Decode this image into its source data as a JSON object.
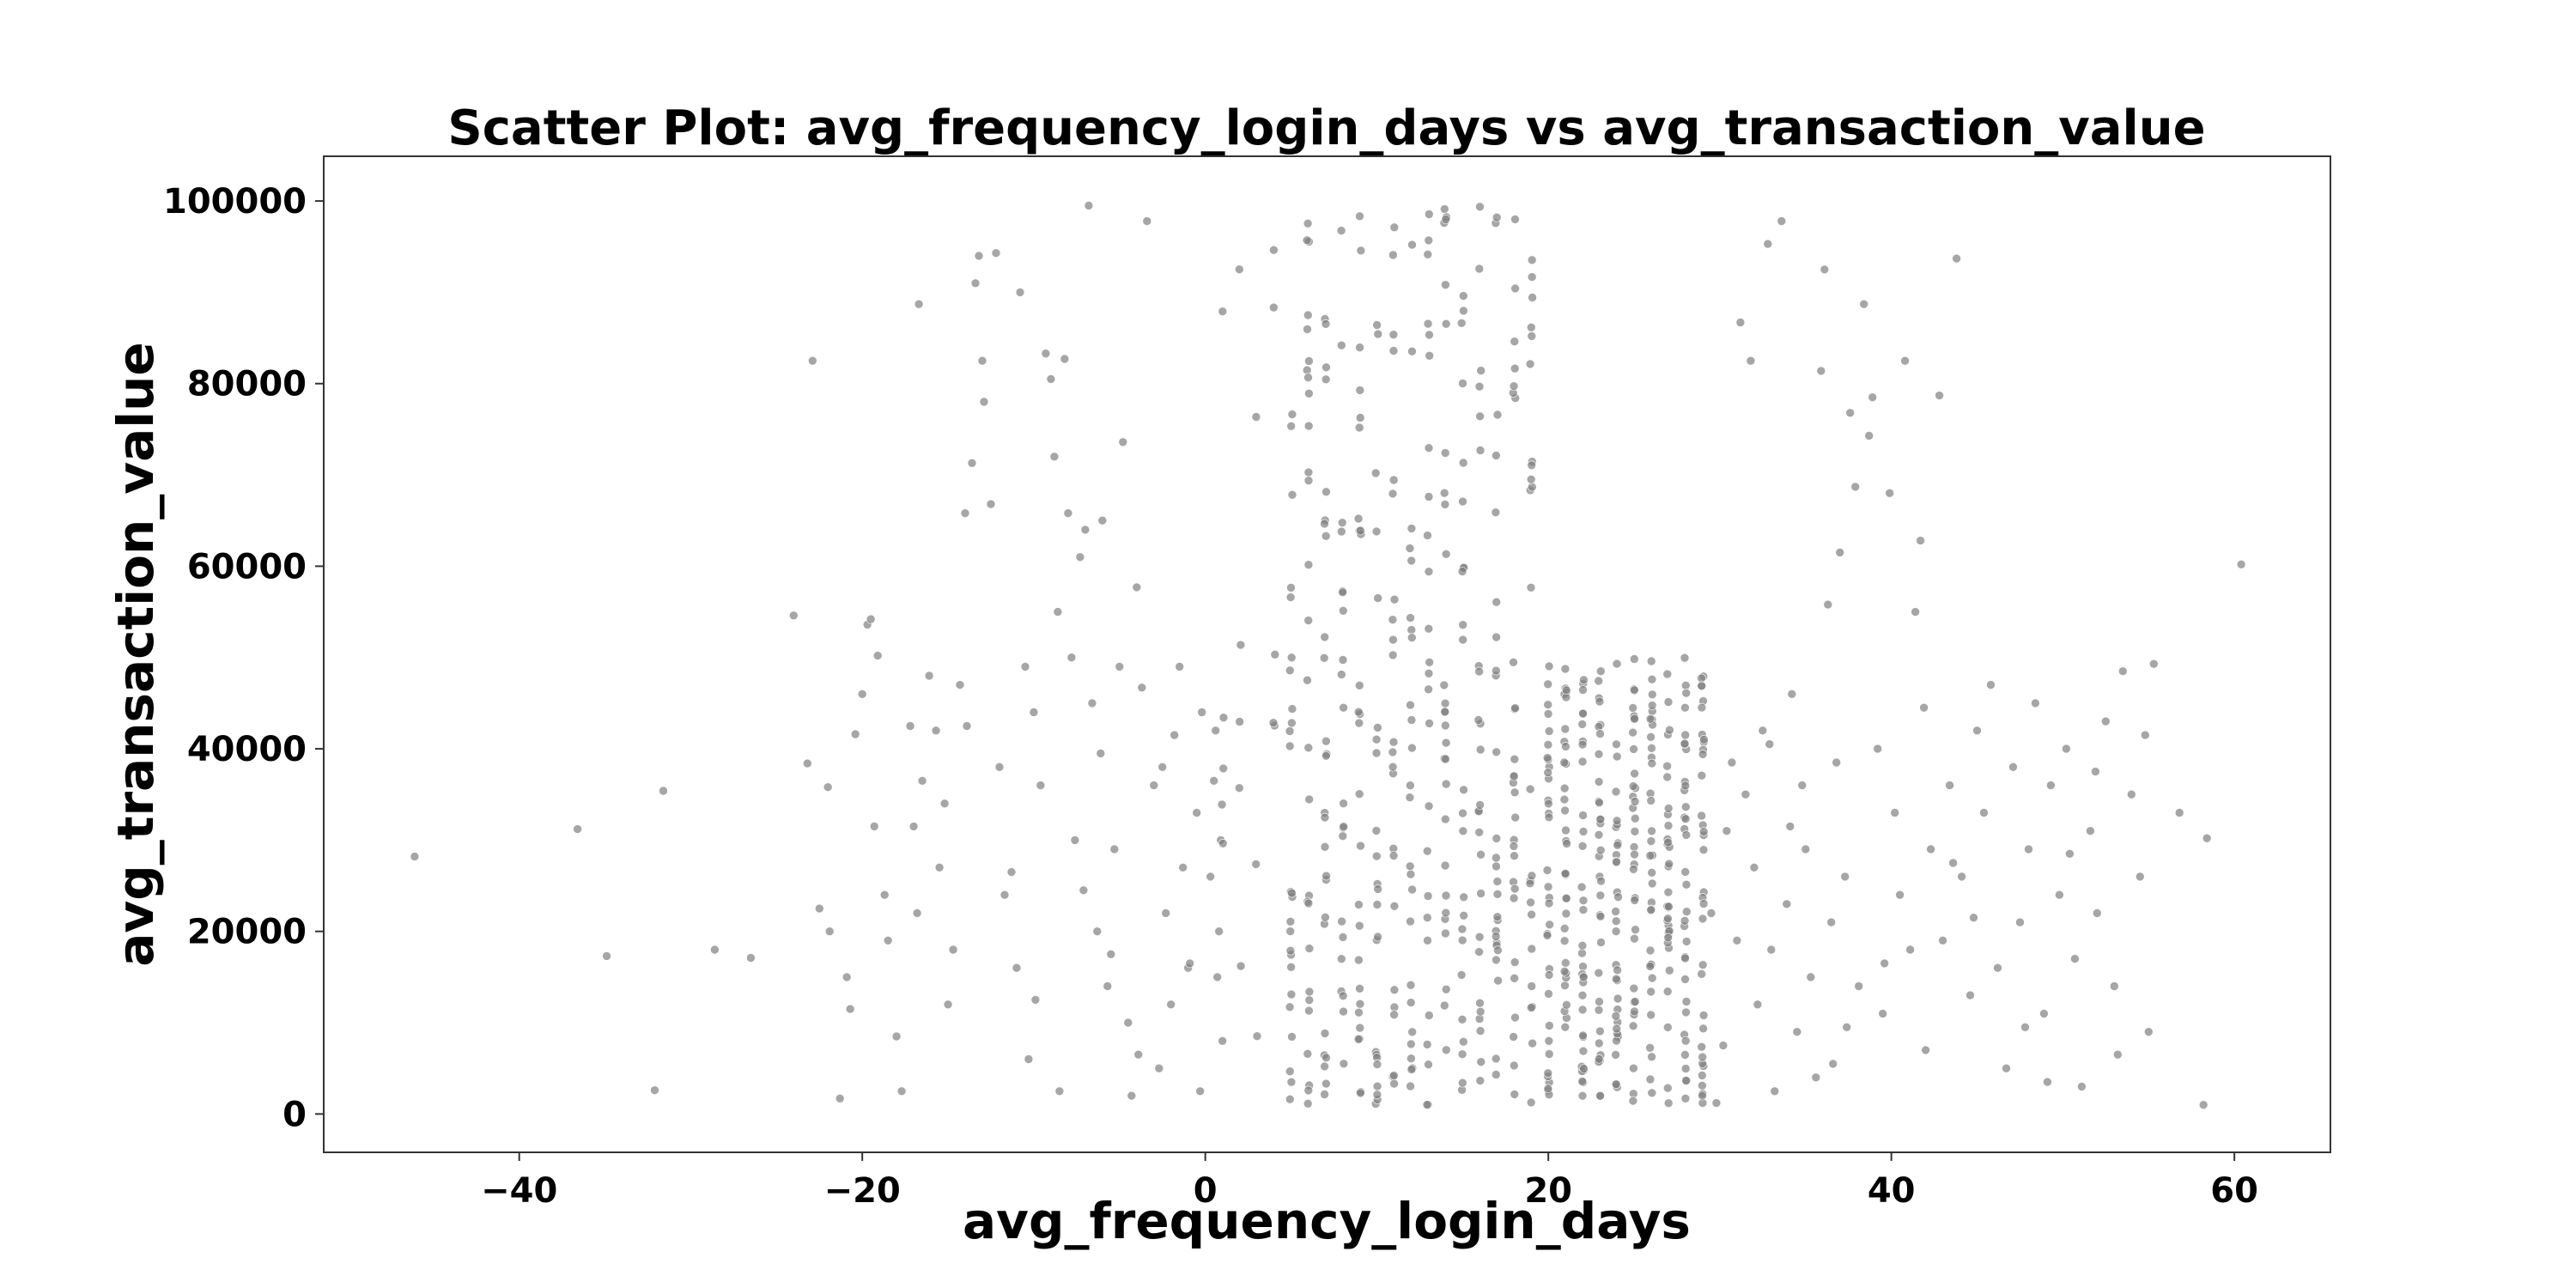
{
  "chart_data": {
    "type": "scatter",
    "title": "Scatter Plot: avg_frequency_login_days vs avg_transaction_value",
    "xlabel": "avg_frequency_login_days",
    "ylabel": "avg_transaction_value",
    "xlim": [
      -51.4,
      65.6
    ],
    "ylim": [
      -4200,
      104900
    ],
    "xticks": [
      -40,
      -20,
      0,
      20,
      40,
      60
    ],
    "xtick_labels": [
      "−40",
      "−20",
      "0",
      "20",
      "40",
      "60"
    ],
    "yticks": [
      0,
      20000,
      40000,
      60000,
      80000,
      100000
    ],
    "ytick_labels": [
      "0",
      "20000",
      "40000",
      "60000",
      "80000",
      "100000"
    ],
    "grid": false,
    "marker_color": "#808080",
    "marker_alpha": 0.7,
    "series": [
      {
        "name": "",
        "points": [
          [
            -46.1,
            28200
          ],
          [
            -36.6,
            31200
          ],
          [
            -34.9,
            17300
          ],
          [
            -32.1,
            2600
          ],
          [
            -31.6,
            35400
          ],
          [
            -28.6,
            18000
          ],
          [
            -26.5,
            17100
          ],
          [
            -24.0,
            54600
          ],
          [
            -23.2,
            38400
          ],
          [
            -22.9,
            82500
          ],
          [
            -22.5,
            22500
          ],
          [
            -22.0,
            35800
          ],
          [
            -21.9,
            20000
          ],
          [
            -21.3,
            1700
          ],
          [
            -20.9,
            15000
          ],
          [
            -20.7,
            11500
          ],
          [
            -20.4,
            41600
          ],
          [
            -20.0,
            46000
          ],
          [
            -19.7,
            53600
          ],
          [
            -19.5,
            54200
          ],
          [
            -19.1,
            50200
          ],
          [
            -18.7,
            24000
          ],
          [
            -18.5,
            19000
          ],
          [
            -17.7,
            2500
          ],
          [
            -17.2,
            42500
          ],
          [
            -17.0,
            31500
          ],
          [
            -16.7,
            88700
          ],
          [
            -16.5,
            36500
          ],
          [
            -16.1,
            48000
          ],
          [
            -15.7,
            42000
          ],
          [
            -15.5,
            27000
          ],
          [
            -15.0,
            12000
          ],
          [
            -14.7,
            18000
          ],
          [
            -14.3,
            47000
          ],
          [
            -14.0,
            65800
          ],
          [
            -13.6,
            71300
          ],
          [
            -13.4,
            91000
          ],
          [
            -13.2,
            94000
          ],
          [
            -13.0,
            82500
          ],
          [
            -12.9,
            78000
          ],
          [
            -12.5,
            66800
          ],
          [
            -12.2,
            94300
          ],
          [
            -12.0,
            38000
          ],
          [
            -11.7,
            24000
          ],
          [
            -11.0,
            16000
          ],
          [
            -10.8,
            90000
          ],
          [
            -10.5,
            49000
          ],
          [
            -10.3,
            6000
          ],
          [
            -10.0,
            44000
          ],
          [
            -9.6,
            36000
          ],
          [
            -9.3,
            83300
          ],
          [
            -9.0,
            80500
          ],
          [
            -8.8,
            72000
          ],
          [
            -8.6,
            55000
          ],
          [
            -8.5,
            2500
          ],
          [
            -8.2,
            82700
          ],
          [
            -8.0,
            65800
          ],
          [
            -7.8,
            50000
          ],
          [
            -7.6,
            30000
          ],
          [
            -7.3,
            61000
          ],
          [
            -7.0,
            64000
          ],
          [
            -6.8,
            99500
          ],
          [
            -6.6,
            45000
          ],
          [
            -6.3,
            20000
          ],
          [
            -6.0,
            65000
          ],
          [
            -5.7,
            14000
          ],
          [
            -5.3,
            29000
          ],
          [
            -5.0,
            49000
          ],
          [
            -4.8,
            73600
          ],
          [
            -4.5,
            10000
          ],
          [
            -4.3,
            2000
          ],
          [
            -4.0,
            57700
          ],
          [
            -3.7,
            46700
          ],
          [
            -3.4,
            97800
          ],
          [
            -3.0,
            36000
          ],
          [
            -2.7,
            5000
          ],
          [
            -2.5,
            38000
          ],
          [
            -2.3,
            22000
          ],
          [
            -2.0,
            12000
          ],
          [
            -1.5,
            49000
          ],
          [
            -1.3,
            27000
          ],
          [
            -1.0,
            16000
          ],
          [
            -0.5,
            33000
          ],
          [
            -0.3,
            2500
          ],
          [
            -0.2,
            44000
          ],
          [
            0.6,
            42000
          ],
          [
            0.7,
            15000
          ],
          [
            0.9,
            30000
          ],
          [
            1.0,
            8000
          ],
          [
            0.8,
            20000
          ],
          [
            29.5,
            22000
          ],
          [
            29.8,
            1200
          ],
          [
            30.2,
            7500
          ],
          [
            30.4,
            31000
          ],
          [
            30.7,
            38500
          ],
          [
            31.0,
            19000
          ],
          [
            31.2,
            86700
          ],
          [
            31.5,
            35000
          ],
          [
            31.8,
            82500
          ],
          [
            32.0,
            27000
          ],
          [
            32.2,
            12000
          ],
          [
            32.5,
            42000
          ],
          [
            32.8,
            95300
          ],
          [
            33.0,
            18000
          ],
          [
            33.2,
            2500
          ],
          [
            33.6,
            97800
          ],
          [
            33.9,
            23000
          ],
          [
            34.2,
            46000
          ],
          [
            34.5,
            9000
          ],
          [
            34.8,
            36000
          ],
          [
            35.0,
            29000
          ],
          [
            35.3,
            15000
          ],
          [
            35.6,
            4000
          ],
          [
            35.9,
            81400
          ],
          [
            36.1,
            92500
          ],
          [
            36.3,
            55800
          ],
          [
            36.5,
            21000
          ],
          [
            36.8,
            38500
          ],
          [
            37.0,
            61500
          ],
          [
            37.3,
            26000
          ],
          [
            37.6,
            76800
          ],
          [
            37.9,
            68700
          ],
          [
            38.1,
            14000
          ],
          [
            38.4,
            88700
          ],
          [
            38.7,
            74300
          ],
          [
            38.9,
            78500
          ],
          [
            39.2,
            40000
          ],
          [
            39.5,
            11000
          ],
          [
            39.9,
            68000
          ],
          [
            40.2,
            33000
          ],
          [
            40.5,
            24000
          ],
          [
            40.8,
            82500
          ],
          [
            41.1,
            18000
          ],
          [
            41.4,
            55000
          ],
          [
            41.7,
            62800
          ],
          [
            42.0,
            7000
          ],
          [
            42.3,
            29000
          ],
          [
            42.8,
            78700
          ],
          [
            43.0,
            19000
          ],
          [
            43.4,
            36000
          ],
          [
            43.8,
            93700
          ],
          [
            44.1,
            26000
          ],
          [
            44.6,
            13000
          ],
          [
            45.0,
            42000
          ],
          [
            45.4,
            33000
          ],
          [
            45.8,
            47000
          ],
          [
            46.2,
            16000
          ],
          [
            46.7,
            5000
          ],
          [
            47.1,
            38000
          ],
          [
            47.5,
            21000
          ],
          [
            48.0,
            29000
          ],
          [
            48.4,
            45000
          ],
          [
            48.9,
            11000
          ],
          [
            49.3,
            36000
          ],
          [
            49.8,
            24000
          ],
          [
            50.2,
            40000
          ],
          [
            50.7,
            17000
          ],
          [
            51.1,
            3000
          ],
          [
            51.6,
            31000
          ],
          [
            52.0,
            22000
          ],
          [
            52.5,
            43000
          ],
          [
            53.0,
            14000
          ],
          [
            53.5,
            48500
          ],
          [
            54.0,
            35000
          ],
          [
            54.5,
            26000
          ],
          [
            55.0,
            9000
          ],
          [
            55.3,
            49300
          ],
          [
            56.8,
            33000
          ],
          [
            58.2,
            1000
          ],
          [
            58.4,
            30200
          ],
          [
            60.4,
            60200
          ],
          [
            -0.9,
            16500
          ],
          [
            0.3,
            26000
          ],
          [
            0.5,
            36500
          ],
          [
            -11.3,
            26500
          ],
          [
            -13.9,
            42500
          ],
          [
            -15.2,
            34000
          ],
          [
            -18.0,
            8500
          ],
          [
            -19.3,
            31500
          ],
          [
            -7.1,
            24500
          ],
          [
            -5.5,
            17500
          ],
          [
            -3.9,
            6500
          ],
          [
            -1.8,
            41500
          ],
          [
            34.1,
            31500
          ],
          [
            36.6,
            5500
          ],
          [
            39.6,
            16500
          ],
          [
            41.9,
            44500
          ],
          [
            44.8,
            21500
          ],
          [
            47.8,
            9500
          ],
          [
            50.4,
            28500
          ],
          [
            53.2,
            6500
          ],
          [
            54.8,
            41500
          ],
          [
            -16.8,
            22000
          ],
          [
            -9.9,
            12500
          ],
          [
            -6.1,
            39500
          ],
          [
            32.9,
            40500
          ],
          [
            37.4,
            9500
          ],
          [
            43.6,
            27500
          ],
          [
            49.1,
            3500
          ],
          [
            51.9,
            37500
          ]
        ]
      }
    ]
  }
}
